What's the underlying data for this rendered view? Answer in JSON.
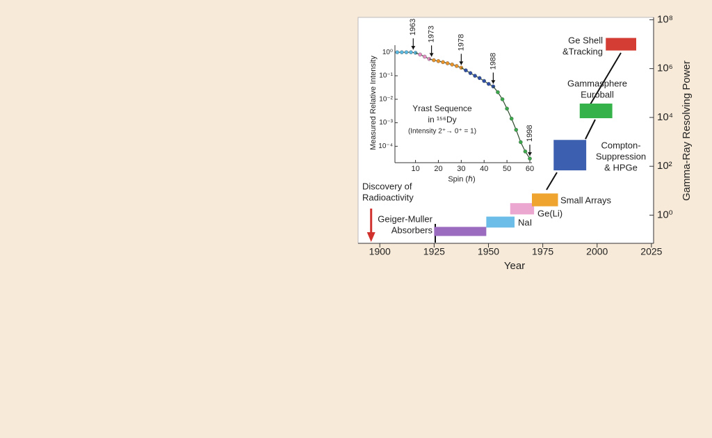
{
  "chart_data": [
    {
      "type": "timeline",
      "x_label": "Year",
      "y_label": "Gamma-Ray Resolving Power",
      "xlim": [
        1890,
        2026
      ],
      "xticks": [
        1900,
        1925,
        1950,
        1975,
        2000,
        2025
      ],
      "ylim": [
        0.07,
        125000000
      ],
      "log_y": true,
      "y_axis_side": "right",
      "yticks": [
        {
          "value": 1,
          "label": "10⁰"
        },
        {
          "value": 100,
          "label": "10²"
        },
        {
          "value": 10000,
          "label": "10⁴"
        },
        {
          "value": 1000000,
          "label": "10⁶"
        },
        {
          "value": 100000000,
          "label": "10⁸"
        }
      ],
      "annotation": {
        "text": [
          "Discovery of",
          "Radioactivity"
        ],
        "x": 1896,
        "color": "#d0312d"
      },
      "items": [
        {
          "label": [
            "Geiger-Muller",
            "Absorbers"
          ],
          "x": [
            1925,
            1949
          ],
          "y": [
            0.14,
            0.33
          ],
          "color": "#9b6bbf"
        },
        {
          "label": [
            "NaI"
          ],
          "x": [
            1949,
            1962
          ],
          "y": [
            0.31,
            0.87
          ],
          "color": "#6cbde8"
        },
        {
          "label": [
            "Ge(Li)"
          ],
          "x": [
            1960,
            1971
          ],
          "y": [
            1.07,
            3.1
          ],
          "color": "#eba7cf"
        },
        {
          "label": [
            "Small Arrays"
          ],
          "x": [
            1970,
            1982
          ],
          "y": [
            2.3,
            7.7
          ],
          "color": "#eea42e"
        },
        {
          "label": [
            "Compton-",
            "Suppression",
            "& HPGe"
          ],
          "x": [
            1980,
            1995
          ],
          "y": [
            68,
            1200
          ],
          "color": "#3c5fb0"
        },
        {
          "label": [
            "Gammasphere",
            "Euroball"
          ],
          "x": [
            1992,
            2007
          ],
          "y": [
            9300,
            37000
          ],
          "color": "#35b34a"
        },
        {
          "label": [
            "Ge Shell",
            "&Tracking"
          ],
          "x": [
            2004,
            2018
          ],
          "y": [
            5500000,
            18000000
          ],
          "color": "#d43d33"
        }
      ]
    },
    {
      "type": "line-scatter",
      "title": [
        "Yrast Sequence",
        "in ¹⁵⁶Dy",
        "(Intensity 2⁺→ 0⁺ = 1)"
      ],
      "x_label": "Spin (ℏ)",
      "y_label": "Measured Relative Intensity",
      "xlim": [
        1,
        60
      ],
      "xticks": [
        10,
        20,
        30,
        40,
        50,
        60
      ],
      "ylim": [
        2e-05,
        2
      ],
      "log_y": true,
      "yticks": [
        {
          "value": 1,
          "label": "10⁰"
        },
        {
          "value": 0.1,
          "label": "10⁻¹"
        },
        {
          "value": 0.01,
          "label": "10⁻²"
        },
        {
          "value": 0.001,
          "label": "10⁻³"
        },
        {
          "value": 0.0001,
          "label": "10⁻⁴"
        }
      ],
      "line_color": "#2d4a2d",
      "series": [
        {
          "color": "#5bb8e0",
          "x": [
            2,
            4,
            6,
            8,
            10
          ],
          "values": [
            1,
            1,
            1,
            1,
            0.95
          ]
        },
        {
          "color": "#e48cc4",
          "x": [
            12,
            14,
            16
          ],
          "values": [
            0.8,
            0.65,
            0.52
          ]
        },
        {
          "color": "#e8922a",
          "x": [
            18,
            20,
            22,
            24,
            26,
            28,
            30
          ],
          "values": [
            0.46,
            0.42,
            0.38,
            0.34,
            0.3,
            0.26,
            0.22
          ]
        },
        {
          "color": "#2e4fa3",
          "x": [
            32,
            34,
            36,
            38,
            40,
            42,
            44
          ],
          "values": [
            0.17,
            0.13,
            0.1,
            0.08,
            0.06,
            0.045,
            0.035
          ]
        },
        {
          "color": "#3aa84a",
          "x": [
            46,
            48,
            50,
            52,
            54,
            56,
            58,
            60
          ],
          "values": [
            0.02,
            0.01,
            0.004,
            0.0015,
            0.0005,
            0.00015,
            6e-05,
            3e-05
          ]
        }
      ],
      "annotations": [
        {
          "text": "1963",
          "x": 9,
          "y": 1
        },
        {
          "text": "1973",
          "x": 17,
          "y": 0.5
        },
        {
          "text": "1978",
          "x": 30,
          "y": 0.22
        },
        {
          "text": "1988",
          "x": 44,
          "y": 0.035
        },
        {
          "text": "1998",
          "x": 60,
          "y": 3e-05
        }
      ]
    }
  ]
}
